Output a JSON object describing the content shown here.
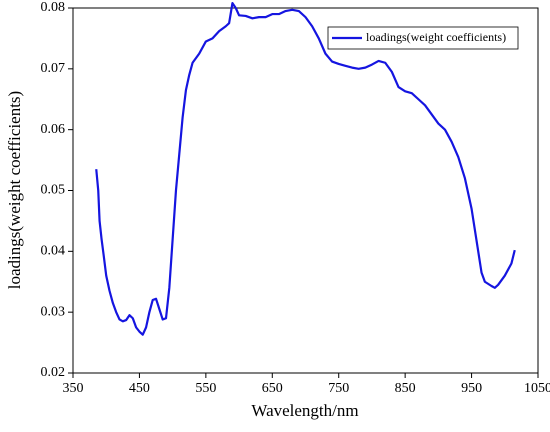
{
  "chart_data": {
    "type": "line",
    "xlabel": "Wavelength/nm",
    "ylabel": "loadings(weight coefficients)",
    "legend": "upper right",
    "xlim": [
      350,
      1050
    ],
    "xticks": [
      350,
      450,
      550,
      650,
      750,
      850,
      950,
      1050
    ],
    "ylim": [
      0.02,
      0.08
    ],
    "yticks": [
      0.02,
      0.03,
      0.04,
      0.05,
      0.06,
      0.07,
      0.08
    ],
    "x": [
      385,
      388,
      390,
      393,
      396,
      400,
      405,
      410,
      415,
      420,
      425,
      430,
      435,
      440,
      445,
      450,
      455,
      460,
      465,
      470,
      475,
      480,
      485,
      490,
      495,
      500,
      505,
      510,
      515,
      520,
      525,
      530,
      540,
      550,
      560,
      570,
      580,
      585,
      590,
      595,
      600,
      610,
      620,
      630,
      640,
      650,
      660,
      670,
      680,
      690,
      700,
      710,
      720,
      730,
      740,
      750,
      760,
      770,
      780,
      790,
      800,
      810,
      820,
      830,
      840,
      850,
      860,
      870,
      880,
      890,
      900,
      910,
      920,
      930,
      940,
      950,
      960,
      965,
      970,
      980,
      985,
      990,
      1000,
      1010,
      1015
    ],
    "series": [
      {
        "name": "loadings(weight coefficients)",
        "color": "#1515e0",
        "values": [
          0.0535,
          0.05,
          0.045,
          0.042,
          0.0395,
          0.036,
          0.0335,
          0.0315,
          0.03,
          0.0288,
          0.0285,
          0.0287,
          0.0295,
          0.029,
          0.0275,
          0.0268,
          0.0263,
          0.0275,
          0.03,
          0.032,
          0.0322,
          0.0305,
          0.0288,
          0.029,
          0.034,
          0.042,
          0.05,
          0.056,
          0.062,
          0.0665,
          0.069,
          0.071,
          0.0725,
          0.0745,
          0.075,
          0.0762,
          0.077,
          0.0775,
          0.0808,
          0.08,
          0.0788,
          0.0787,
          0.0783,
          0.0785,
          0.0785,
          0.079,
          0.079,
          0.0795,
          0.0797,
          0.0795,
          0.0785,
          0.077,
          0.075,
          0.0725,
          0.0712,
          0.0708,
          0.0705,
          0.0702,
          0.07,
          0.0702,
          0.0707,
          0.0713,
          0.071,
          0.0695,
          0.067,
          0.0663,
          0.066,
          0.065,
          0.064,
          0.0625,
          0.061,
          0.06,
          0.058,
          0.0555,
          0.052,
          0.047,
          0.04,
          0.0365,
          0.035,
          0.0343,
          0.034,
          0.0345,
          0.036,
          0.038,
          0.0402
        ]
      }
    ]
  }
}
